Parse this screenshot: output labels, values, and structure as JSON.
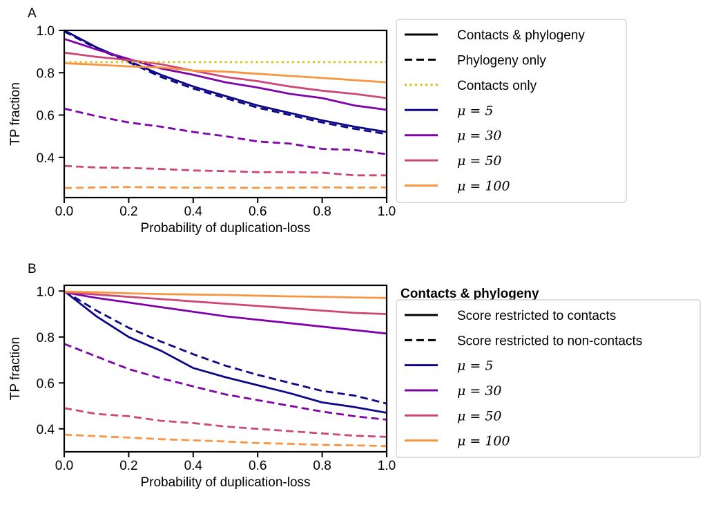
{
  "chart_data": [
    {
      "panel": "A",
      "type": "line",
      "xlabel": "Probability of duplication-loss",
      "ylabel": "TP fraction",
      "xlim": [
        0,
        1
      ],
      "ylim": [
        0.21,
        1.0
      ],
      "xticks": [
        "0.0",
        "0.2",
        "0.4",
        "0.6",
        "0.8",
        "1.0"
      ],
      "yticks": [
        "0.4",
        "0.6",
        "0.8",
        "1.0"
      ],
      "x": [
        0,
        0.1,
        0.2,
        0.3,
        0.4,
        0.5,
        0.6,
        0.7,
        0.8,
        0.9,
        1.0
      ],
      "legend": {
        "placement": "outside-right",
        "entries": [
          {
            "label": "Contacts & phylogeny",
            "style": "solid",
            "color": "#000000"
          },
          {
            "label": "Phylogeny only",
            "style": "dashed",
            "color": "#000000"
          },
          {
            "label": "Contacts only",
            "style": "dotted",
            "color": "#e1b80d"
          },
          {
            "label": "μ = 5",
            "style": "solid",
            "color": "#0d0887"
          },
          {
            "label": "μ = 30",
            "style": "solid",
            "color": "#7e03a8"
          },
          {
            "label": "μ = 50",
            "style": "solid",
            "color": "#cc4778"
          },
          {
            "label": "μ = 100",
            "style": "solid",
            "color": "#f89540"
          }
        ]
      },
      "series": [
        {
          "mu": "5",
          "kind": "Contacts & phylogeny",
          "style": "solid",
          "color": "#0d0887",
          "values": [
            1.0,
            0.92,
            0.855,
            0.79,
            0.735,
            0.69,
            0.645,
            0.61,
            0.575,
            0.545,
            0.52
          ]
        },
        {
          "mu": "5",
          "kind": "Phylogeny only",
          "style": "dashed",
          "color": "#0d0887",
          "values": [
            0.995,
            0.915,
            0.85,
            0.78,
            0.725,
            0.68,
            0.635,
            0.6,
            0.565,
            0.535,
            0.51
          ]
        },
        {
          "mu": "30",
          "kind": "Contacts & phylogeny",
          "style": "solid",
          "color": "#7e03a8",
          "values": [
            0.96,
            0.91,
            0.865,
            0.82,
            0.79,
            0.755,
            0.73,
            0.7,
            0.68,
            0.645,
            0.625
          ]
        },
        {
          "mu": "30",
          "kind": "Phylogeny only",
          "style": "dashed",
          "color": "#7e03a8",
          "values": [
            0.63,
            0.595,
            0.565,
            0.545,
            0.52,
            0.5,
            0.475,
            0.465,
            0.44,
            0.435,
            0.415
          ]
        },
        {
          "mu": "50",
          "kind": "Contacts & phylogeny",
          "style": "solid",
          "color": "#cc4778",
          "values": [
            0.895,
            0.875,
            0.86,
            0.84,
            0.81,
            0.78,
            0.76,
            0.735,
            0.715,
            0.7,
            0.68
          ]
        },
        {
          "mu": "50",
          "kind": "Phylogeny only",
          "style": "dashed",
          "color": "#cc4778",
          "values": [
            0.36,
            0.352,
            0.35,
            0.345,
            0.338,
            0.335,
            0.33,
            0.33,
            0.328,
            0.315,
            0.315
          ]
        },
        {
          "mu": "100",
          "kind": "Contacts & phylogeny",
          "style": "solid",
          "color": "#f89540",
          "values": [
            0.845,
            0.838,
            0.83,
            0.825,
            0.81,
            0.805,
            0.795,
            0.785,
            0.775,
            0.765,
            0.755
          ]
        },
        {
          "mu": "100",
          "kind": "Phylogeny only",
          "style": "dashed",
          "color": "#f89540",
          "values": [
            0.255,
            0.258,
            0.26,
            0.258,
            0.257,
            0.257,
            0.256,
            0.257,
            0.258,
            0.257,
            0.258
          ]
        },
        {
          "kind": "Contacts only",
          "style": "dotted",
          "color": "#e1b80d",
          "values": [
            0.85,
            0.85,
            0.85,
            0.85,
            0.85,
            0.85,
            0.85,
            0.85,
            0.85,
            0.85,
            0.85
          ]
        }
      ]
    },
    {
      "panel": "B",
      "type": "line",
      "xlabel": "Probability of duplication-loss",
      "ylabel": "TP fraction",
      "xlim": [
        0,
        1
      ],
      "ylim": [
        0.3,
        1.025
      ],
      "xticks": [
        "0.0",
        "0.2",
        "0.4",
        "0.6",
        "0.8",
        "1.0"
      ],
      "yticks": [
        "0.4",
        "0.6",
        "0.8",
        "1.0"
      ],
      "x": [
        0,
        0.1,
        0.2,
        0.3,
        0.4,
        0.5,
        0.6,
        0.7,
        0.8,
        0.9,
        1.0
      ],
      "legend": {
        "placement": "outside-right",
        "title": "Contacts & phylogeny",
        "entries": [
          {
            "label": "Score restricted to contacts",
            "style": "solid",
            "color": "#000000"
          },
          {
            "label": "Score restricted to non-contacts",
            "style": "dashed",
            "color": "#000000"
          },
          {
            "label": "μ = 5",
            "style": "solid",
            "color": "#0d0887"
          },
          {
            "label": "μ = 30",
            "style": "solid",
            "color": "#7e03a8"
          },
          {
            "label": "μ = 50",
            "style": "solid",
            "color": "#cc4778"
          },
          {
            "label": "μ = 100",
            "style": "solid",
            "color": "#f89540"
          }
        ]
      },
      "series": [
        {
          "mu": "5",
          "kind": "Score restricted to contacts",
          "style": "solid",
          "color": "#0d0887",
          "values": [
            1.0,
            0.89,
            0.8,
            0.74,
            0.665,
            0.625,
            0.59,
            0.555,
            0.515,
            0.495,
            0.47
          ]
        },
        {
          "mu": "5",
          "kind": "Score restricted to non-contacts",
          "style": "dashed",
          "color": "#0d0887",
          "values": [
            1.0,
            0.915,
            0.84,
            0.78,
            0.725,
            0.675,
            0.635,
            0.6,
            0.565,
            0.545,
            0.51
          ]
        },
        {
          "mu": "30",
          "kind": "Score restricted to contacts",
          "style": "solid",
          "color": "#7e03a8",
          "values": [
            0.995,
            0.97,
            0.95,
            0.93,
            0.91,
            0.89,
            0.875,
            0.86,
            0.845,
            0.83,
            0.815
          ]
        },
        {
          "mu": "30",
          "kind": "Score restricted to non-contacts",
          "style": "dashed",
          "color": "#7e03a8",
          "values": [
            0.77,
            0.715,
            0.66,
            0.62,
            0.585,
            0.55,
            0.525,
            0.5,
            0.475,
            0.455,
            0.44
          ]
        },
        {
          "mu": "50",
          "kind": "Score restricted to contacts",
          "style": "solid",
          "color": "#cc4778",
          "values": [
            0.995,
            0.985,
            0.975,
            0.965,
            0.955,
            0.945,
            0.935,
            0.925,
            0.915,
            0.905,
            0.9
          ]
        },
        {
          "mu": "50",
          "kind": "Score restricted to non-contacts",
          "style": "dashed",
          "color": "#cc4778",
          "values": [
            0.49,
            0.465,
            0.455,
            0.435,
            0.425,
            0.41,
            0.4,
            0.39,
            0.38,
            0.37,
            0.365
          ]
        },
        {
          "mu": "100",
          "kind": "Score restricted to contacts",
          "style": "solid",
          "color": "#f89540",
          "values": [
            0.998,
            0.995,
            0.99,
            0.987,
            0.985,
            0.983,
            0.98,
            0.977,
            0.975,
            0.972,
            0.97
          ]
        },
        {
          "mu": "100",
          "kind": "Score restricted to non-contacts",
          "style": "dashed",
          "color": "#f89540",
          "values": [
            0.375,
            0.368,
            0.362,
            0.355,
            0.35,
            0.345,
            0.338,
            0.335,
            0.33,
            0.328,
            0.325
          ]
        }
      ]
    }
  ]
}
